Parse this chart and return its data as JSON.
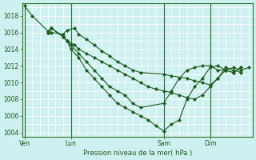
{
  "xlabel": "Pression niveau de la mer( hPa )",
  "bg_color": "#cff0f0",
  "grid_color": "#ffffff",
  "line_color": "#1a5c1a",
  "marker_color": "#1a5c1a",
  "ylim": [
    1003.5,
    1019.5
  ],
  "yticks": [
    1004,
    1006,
    1008,
    1010,
    1012,
    1014,
    1016,
    1018
  ],
  "xtick_labels": [
    "Ven",
    "Lun",
    "Sam",
    "Dim"
  ],
  "xtick_positions": [
    0,
    6,
    18,
    24
  ],
  "vlines": [
    0,
    6,
    18,
    24
  ],
  "xlim": [
    -0.3,
    29.5
  ],
  "series1_x": [
    0,
    1,
    3,
    3.5,
    5,
    5.5,
    6.5,
    7,
    8,
    9,
    10,
    11,
    12,
    13,
    14,
    15,
    18,
    19,
    21,
    22,
    23,
    24,
    25,
    26,
    27,
    28
  ],
  "series1_y": [
    1019.2,
    1018.0,
    1016.2,
    1016.0,
    1015.8,
    1016.3,
    1016.5,
    1015.8,
    1015.2,
    1014.5,
    1013.8,
    1013.2,
    1012.5,
    1012.0,
    1011.5,
    1011.2,
    1011.0,
    1010.8,
    1010.5,
    1010.2,
    1010.0,
    1009.7,
    1010.5,
    1011.8,
    1011.5,
    1011.2
  ],
  "series2_x": [
    3,
    3.5,
    5,
    5.5,
    6.5,
    7,
    8,
    9,
    10,
    11,
    12,
    13,
    14,
    15,
    16,
    17,
    18,
    19,
    20,
    21,
    22,
    23,
    24,
    25,
    26,
    27,
    28,
    29
  ],
  "series2_y": [
    1016.0,
    1016.5,
    1015.5,
    1015.0,
    1014.5,
    1014.0,
    1013.5,
    1013.0,
    1012.5,
    1012.0,
    1011.5,
    1011.0,
    1010.5,
    1010.0,
    1009.5,
    1009.2,
    1009.0,
    1008.8,
    1008.5,
    1008.2,
    1008.0,
    1008.5,
    1009.5,
    1010.5,
    1011.5,
    1011.8,
    1011.5,
    1011.8
  ],
  "series3_x": [
    3,
    3.5,
    5,
    5.5,
    6,
    7,
    8,
    9,
    10,
    11,
    12,
    13,
    14,
    15,
    18,
    19,
    20,
    21,
    22,
    23,
    24,
    25,
    26,
    27,
    28
  ],
  "series3_y": [
    1016.0,
    1016.5,
    1015.5,
    1015.0,
    1014.5,
    1013.5,
    1012.5,
    1011.5,
    1010.5,
    1009.5,
    1009.0,
    1008.5,
    1007.5,
    1007.0,
    1007.5,
    1009.0,
    1010.5,
    1011.5,
    1011.8,
    1012.0,
    1012.0,
    1011.5,
    1011.5,
    1011.2,
    1011.8
  ],
  "series4_x": [
    3,
    3.5,
    5,
    5.5,
    6,
    7,
    8,
    9,
    10,
    11,
    12,
    13,
    14,
    15,
    16,
    17,
    18,
    19,
    20,
    21,
    22,
    23,
    24,
    25,
    26,
    27,
    28
  ],
  "series4_y": [
    1016.0,
    1016.5,
    1015.5,
    1015.0,
    1014.0,
    1013.0,
    1011.5,
    1010.5,
    1009.5,
    1008.5,
    1007.5,
    1007.0,
    1006.5,
    1006.0,
    1005.5,
    1004.8,
    1004.2,
    1005.0,
    1005.5,
    1008.0,
    1009.5,
    1010.5,
    1011.8,
    1012.0,
    1011.5,
    1011.2,
    1011.8
  ],
  "marker_size": 2.2
}
